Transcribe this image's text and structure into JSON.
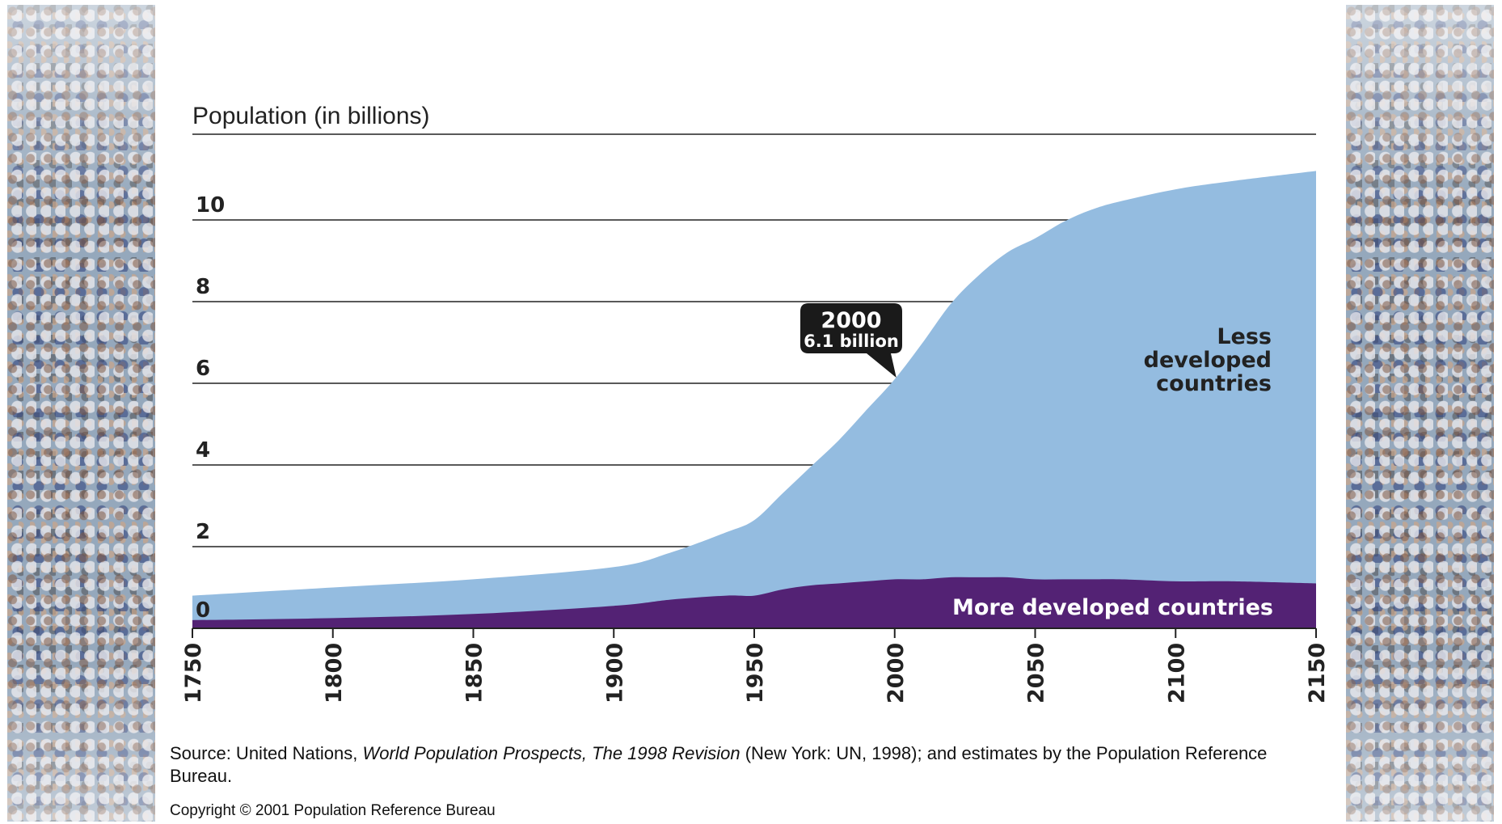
{
  "chart_data": {
    "type": "area",
    "title": "",
    "ylabel": "Population (in billions)",
    "xlabel": "",
    "xlim": [
      1750,
      2150
    ],
    "ylim": [
      0,
      12
    ],
    "x_ticks": [
      "1750",
      "1800",
      "1850",
      "1900",
      "1950",
      "2000",
      "2050",
      "2100",
      "2150"
    ],
    "y_ticks": [
      "0",
      "2",
      "4",
      "6",
      "8",
      "10"
    ],
    "grid": "horizontal",
    "stacked": true,
    "x": [
      1750,
      1800,
      1850,
      1900,
      1920,
      1940,
      1950,
      1960,
      1970,
      1980,
      1990,
      2000,
      2010,
      2020,
      2030,
      2040,
      2050,
      2060,
      2070,
      2080,
      2100,
      2120,
      2150
    ],
    "series": [
      {
        "name": "More developed countries",
        "color": "#532274",
        "values": [
          0.2,
          0.25,
          0.35,
          0.55,
          0.7,
          0.8,
          0.8,
          0.95,
          1.05,
          1.1,
          1.15,
          1.2,
          1.2,
          1.25,
          1.25,
          1.25,
          1.2,
          1.2,
          1.2,
          1.2,
          1.15,
          1.15,
          1.1
        ]
      },
      {
        "name": "Less developed countries",
        "color": "#94bce0",
        "values": [
          0.6,
          0.75,
          0.85,
          0.95,
          1.15,
          1.55,
          1.85,
          2.35,
          2.9,
          3.5,
          4.2,
          4.9,
          5.8,
          6.7,
          7.4,
          7.95,
          8.35,
          8.75,
          9.05,
          9.25,
          9.6,
          9.8,
          10.1
        ]
      }
    ],
    "annotations": [
      {
        "year": "2000",
        "text": "6.1 billion",
        "x": 2000,
        "y": 6.1
      }
    ],
    "source": "Source: United Nations, World Population Prospects, The 1998 Revision (New York: UN, 1998); and estimates by the Population Reference Bureau.",
    "source_parts": {
      "prefix": "Source: United Nations, ",
      "italic_title": "World Population Prospects, The 1998 Revision",
      "suffix": " (New York: UN, 1998); and estimates by the Population Reference Bureau."
    },
    "copyright": "Copyright © 2001 Population Reference Bureau"
  }
}
